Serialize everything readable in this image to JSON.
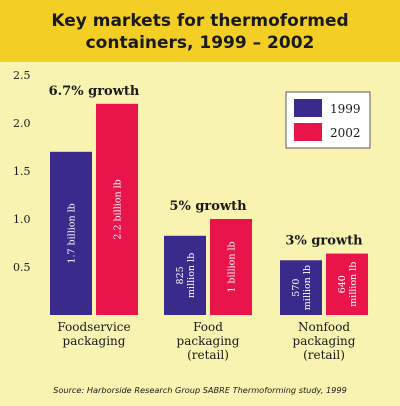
{
  "chart_data": {
    "type": "bar",
    "title_line1": "Key markets for thermoformed",
    "title_line2": "containers, 1999 – 2002",
    "source": "Source: Harborside Research Group SABRE Thermoforming study, 1999",
    "ylim": [
      0,
      2.5
    ],
    "yticks": [
      0.5,
      1.0,
      1.5,
      2.0,
      2.5
    ],
    "ytick_labels": [
      "0.5",
      "1.0",
      "1.5",
      "2.0",
      "2.5"
    ],
    "categories": [
      [
        "Foodservice",
        "packaging"
      ],
      [
        "Food",
        "packaging",
        "(retail)"
      ],
      [
        "Nonfood",
        "packaging",
        "(retail)"
      ]
    ],
    "series": [
      {
        "name": "1999",
        "color": "#3a2a8c",
        "values": [
          1.7,
          0.825,
          0.57
        ],
        "labels": [
          [
            "1.7 billion lb"
          ],
          [
            "825",
            "million lb"
          ],
          [
            "570",
            "million lb"
          ]
        ]
      },
      {
        "name": "2002",
        "color": "#e8144a",
        "values": [
          2.2,
          1.0,
          0.64
        ],
        "labels": [
          [
            "2.2 billion lb"
          ],
          [
            "1 billion lb"
          ],
          [
            "640",
            "million lb"
          ]
        ]
      }
    ],
    "growth_labels": [
      "6.7% growth",
      "5% growth",
      "3% growth"
    ],
    "legend_position": "top-right",
    "grid": false
  },
  "colors": {
    "background": "#f8f3b0",
    "title_band": "#f3cf25",
    "text": "#1a1a1a"
  }
}
